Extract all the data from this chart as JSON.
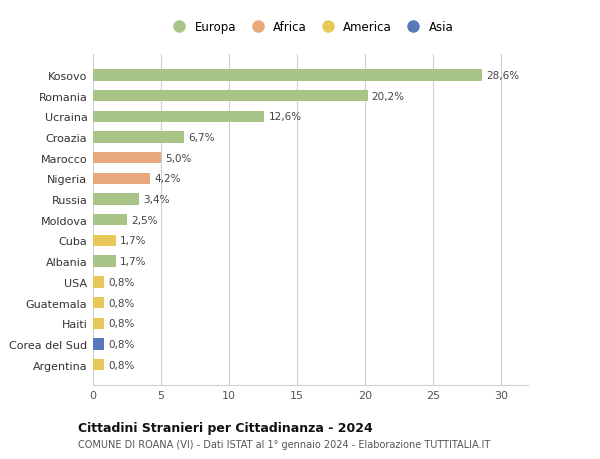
{
  "countries": [
    "Kosovo",
    "Romania",
    "Ucraina",
    "Croazia",
    "Marocco",
    "Nigeria",
    "Russia",
    "Moldova",
    "Cuba",
    "Albania",
    "USA",
    "Guatemala",
    "Haiti",
    "Corea del Sud",
    "Argentina"
  ],
  "values": [
    28.6,
    20.2,
    12.6,
    6.7,
    5.0,
    4.2,
    3.4,
    2.5,
    1.7,
    1.7,
    0.8,
    0.8,
    0.8,
    0.8,
    0.8
  ],
  "labels": [
    "28,6%",
    "20,2%",
    "12,6%",
    "6,7%",
    "5,0%",
    "4,2%",
    "3,4%",
    "2,5%",
    "1,7%",
    "1,7%",
    "0,8%",
    "0,8%",
    "0,8%",
    "0,8%",
    "0,8%"
  ],
  "continents": [
    "Europa",
    "Europa",
    "Europa",
    "Europa",
    "Africa",
    "Africa",
    "Europa",
    "Europa",
    "America",
    "Europa",
    "America",
    "America",
    "America",
    "Asia",
    "America"
  ],
  "colors": {
    "Europa": "#a8c487",
    "Africa": "#e8a87c",
    "America": "#e8c85a",
    "Asia": "#5878b8"
  },
  "xlim": [
    0,
    32
  ],
  "xticks": [
    0,
    5,
    10,
    15,
    20,
    25,
    30
  ],
  "title": "Cittadini Stranieri per Cittadinanza - 2024",
  "subtitle": "COMUNE DI ROANA (VI) - Dati ISTAT al 1° gennaio 2024 - Elaborazione TUTTITALIA.IT",
  "bg_color": "#ffffff",
  "grid_color": "#d0d0d0",
  "bar_height": 0.55,
  "legend_order": [
    "Europa",
    "Africa",
    "America",
    "Asia"
  ]
}
